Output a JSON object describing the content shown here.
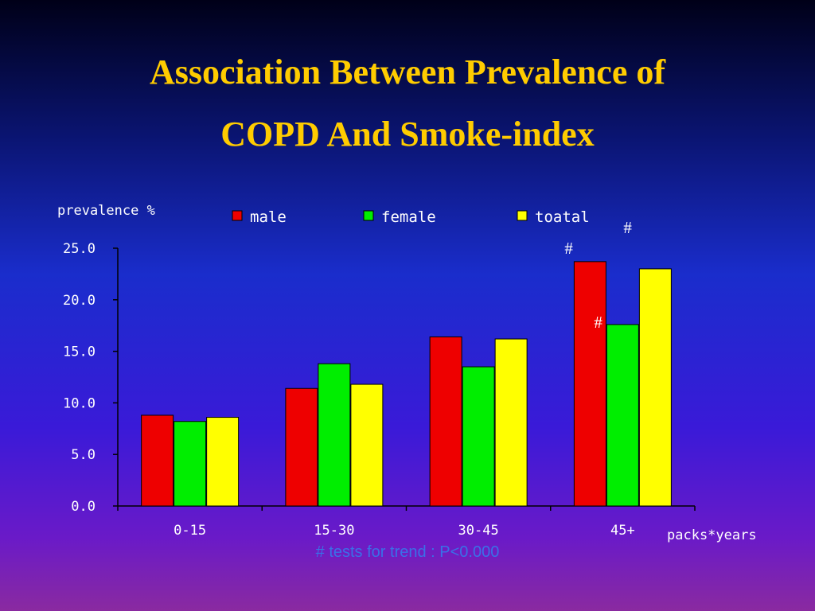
{
  "title_line1": "Association Between Prevalence of",
  "title_line2": "COPD And Smoke-index",
  "footnote": "#  tests for trend : P<0.000",
  "colors": {
    "male": "#ee0000",
    "female": "#00ee00",
    "toatal": "#ffff00",
    "text": "#ffffff",
    "title": "#ffcc00"
  },
  "chart_data": {
    "type": "bar",
    "ylabel": "prevalence %",
    "xlabel": "packs*years",
    "categories": [
      "0-15",
      "15-30",
      "30-45",
      "45+"
    ],
    "ylim": [
      0,
      25
    ],
    "yticks": [
      "0.0",
      "5.0",
      "10.0",
      "15.0",
      "20.0",
      "25.0"
    ],
    "legend_position": "top",
    "series": [
      {
        "name": "male",
        "values": [
          8.8,
          11.4,
          16.4,
          23.7
        ],
        "color": "#ee0000"
      },
      {
        "name": "female",
        "values": [
          8.2,
          13.8,
          13.5,
          17.6
        ],
        "color": "#00ee00"
      },
      {
        "name": "toatal",
        "values": [
          8.6,
          11.8,
          16.2,
          23.0
        ],
        "color": "#ffff00"
      }
    ],
    "annotations": [
      {
        "text": "#",
        "category": "45+",
        "series": "male"
      },
      {
        "text": "#",
        "category": "45+",
        "series": "female"
      },
      {
        "text": "#",
        "category": "45+",
        "series": "toatal"
      }
    ]
  }
}
